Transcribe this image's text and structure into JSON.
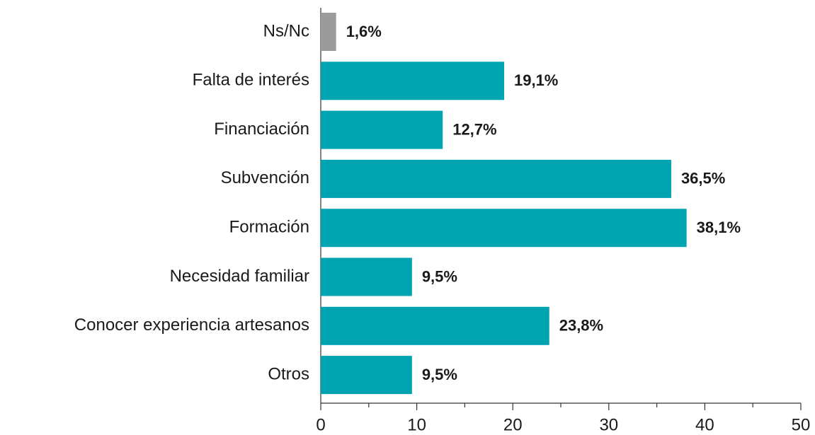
{
  "chart_data": {
    "type": "barh",
    "categories": [
      "Ns/Nc",
      "Falta de interés",
      "Financiación",
      "Subvención",
      "Formación",
      "Necesidad familiar",
      "Conocer experiencia artesanos",
      "Otros"
    ],
    "values": [
      1.6,
      19.1,
      12.7,
      36.5,
      38.1,
      9.5,
      23.8,
      9.5
    ],
    "value_labels": [
      "1,6%",
      "19,1%",
      "12,7%",
      "36,5%",
      "38,1%",
      "9,5%",
      "23,8%",
      "9,5%"
    ],
    "colors": [
      "#9b9b9d",
      "#00a3b0",
      "#00a3b0",
      "#00a3b0",
      "#00a3b0",
      "#00a3b0",
      "#00a3b0",
      "#00a3b0"
    ],
    "xlim": [
      0,
      50
    ],
    "xticks": [
      0,
      10,
      20,
      30,
      40,
      50
    ],
    "minor_xticks": [
      5,
      15,
      25,
      35,
      45
    ]
  }
}
